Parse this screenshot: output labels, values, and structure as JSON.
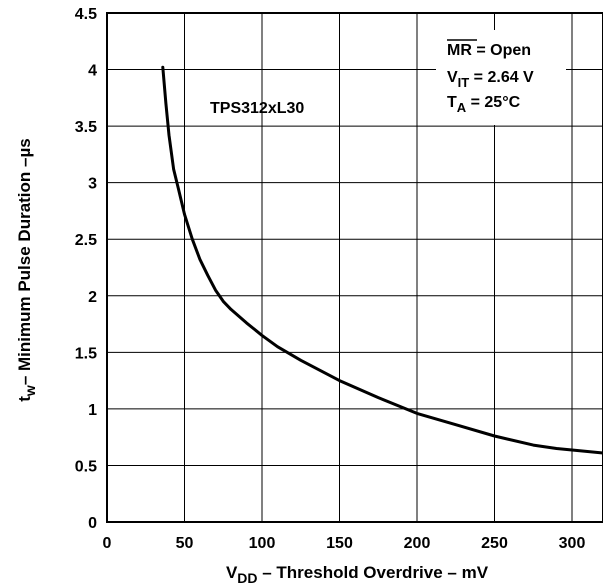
{
  "chart_data": {
    "type": "line",
    "title": "",
    "xlabel": {
      "prefix": "V",
      "sub": "DD",
      "rest": " – Threshold Overdrive – mV"
    },
    "ylabel": {
      "prefix": "t",
      "sub": "w",
      "rest": "– Minimum Pulse Duration –µs"
    },
    "xlim": [
      0,
      320
    ],
    "ylim": [
      0,
      4.5
    ],
    "x_ticks": [
      0,
      50,
      100,
      150,
      200,
      250,
      300
    ],
    "y_ticks": [
      0,
      0.5,
      1,
      1.5,
      2,
      2.5,
      3,
      3.5,
      4,
      4.5
    ],
    "x_tick_labels": [
      "0",
      "50",
      "100",
      "150",
      "200",
      "250",
      "300"
    ],
    "y_tick_labels": [
      "0",
      "0.5",
      "1",
      "1.5",
      "2",
      "2.5",
      "3",
      "3.5",
      "4",
      "4.5"
    ],
    "grid": true,
    "series": [
      {
        "name": "TPS312xL30",
        "color": "#000000",
        "x": [
          36,
          38,
          40,
          43,
          46,
          50,
          55,
          60,
          65,
          70,
          75,
          80,
          90,
          100,
          110,
          125,
          150,
          175,
          200,
          225,
          250,
          275,
          290,
          305,
          320
        ],
        "y": [
          4.02,
          3.7,
          3.42,
          3.12,
          2.95,
          2.72,
          2.5,
          2.32,
          2.18,
          2.05,
          1.95,
          1.88,
          1.76,
          1.65,
          1.55,
          1.43,
          1.25,
          1.1,
          0.96,
          0.86,
          0.76,
          0.68,
          0.65,
          0.63,
          0.61
        ]
      }
    ],
    "annotations": {
      "series_label": "TPS312xL30",
      "conditions": [
        {
          "over": "MR",
          "text": " = Open"
        },
        {
          "prefix": "V",
          "sub": "IT",
          "text": " = 2.64 V"
        },
        {
          "prefix": "T",
          "sub": "A",
          "text": " = 25°C"
        }
      ]
    }
  }
}
